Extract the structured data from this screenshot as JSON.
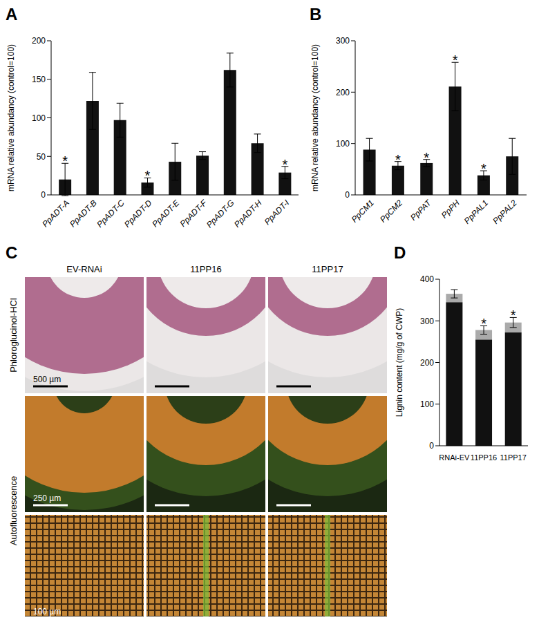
{
  "chart_data": [
    {
      "type": "bar",
      "title": "A",
      "categories": [
        "PpADT-A",
        "PpADT-B",
        "PpADT-C",
        "PpADT-D",
        "PpADT-E",
        "PpADT-F",
        "PpADT-G",
        "PpADT-H",
        "PpADT-I"
      ],
      "values": [
        20,
        122,
        97,
        16,
        43,
        51,
        162,
        67,
        29
      ],
      "errors": [
        21,
        37,
        22,
        6,
        24,
        5,
        22,
        12,
        8
      ],
      "color": "#111111",
      "ylim": [
        0,
        200
      ],
      "yticks": [
        0,
        50,
        100,
        150,
        200
      ],
      "y_label": "mRNA relative abundancy (control=100)",
      "grid": false,
      "annotations": [
        {
          "category": "PpADT-A",
          "text": "*"
        },
        {
          "category": "PpADT-D",
          "text": "*"
        },
        {
          "category": "PpADT-I",
          "text": "*"
        }
      ]
    },
    {
      "type": "bar",
      "title": "B",
      "categories": [
        "PpCM1",
        "PpCM2",
        "PpPAT",
        "PpPH",
        "PpPAL1",
        "PpPAL2"
      ],
      "values": [
        88,
        57,
        62,
        211,
        38,
        75
      ],
      "errors": [
        22,
        8,
        7,
        47,
        9,
        35
      ],
      "color": "#111111",
      "ylim": [
        0,
        300
      ],
      "yticks": [
        0,
        100,
        200,
        300
      ],
      "y_label": "mRNA relative abundancy (control=100)",
      "grid": false,
      "annotations": [
        {
          "category": "PpCM2",
          "text": "*"
        },
        {
          "category": "PpPAT",
          "text": "*"
        },
        {
          "category": "PpPH",
          "text": "*"
        },
        {
          "category": "PpPAL1",
          "text": "*"
        }
      ]
    },
    {
      "type": "image_grid",
      "title": "C",
      "columns": [
        "EV-RNAi",
        "11PP16",
        "11PP17"
      ],
      "row_groups": [
        {
          "label": "Phloroglucinol-HCl",
          "scale_bars": [
            "500 µm"
          ]
        },
        {
          "label": "Autofluorescence",
          "scale_bars": [
            "250 µm",
            "100 µm"
          ]
        }
      ]
    },
    {
      "type": "bar",
      "title": "D",
      "categories": [
        "RNAi-EV",
        "11PP16",
        "11PP17"
      ],
      "stacked": true,
      "series": [
        {
          "color": "#111111",
          "values": [
            345,
            255,
            272
          ]
        },
        {
          "color": "#aaaaaa",
          "values": [
            20,
            23,
            24
          ],
          "errors": [
            10,
            10,
            12
          ]
        }
      ],
      "ylim": [
        0,
        400
      ],
      "yticks": [
        0,
        100,
        200,
        300,
        400
      ],
      "y_label": "Lignin content (mg/g of CWP)",
      "grid": false,
      "annotations": [
        {
          "category": "11PP16",
          "text": "*"
        },
        {
          "category": "11PP17",
          "text": "*"
        }
      ]
    }
  ]
}
